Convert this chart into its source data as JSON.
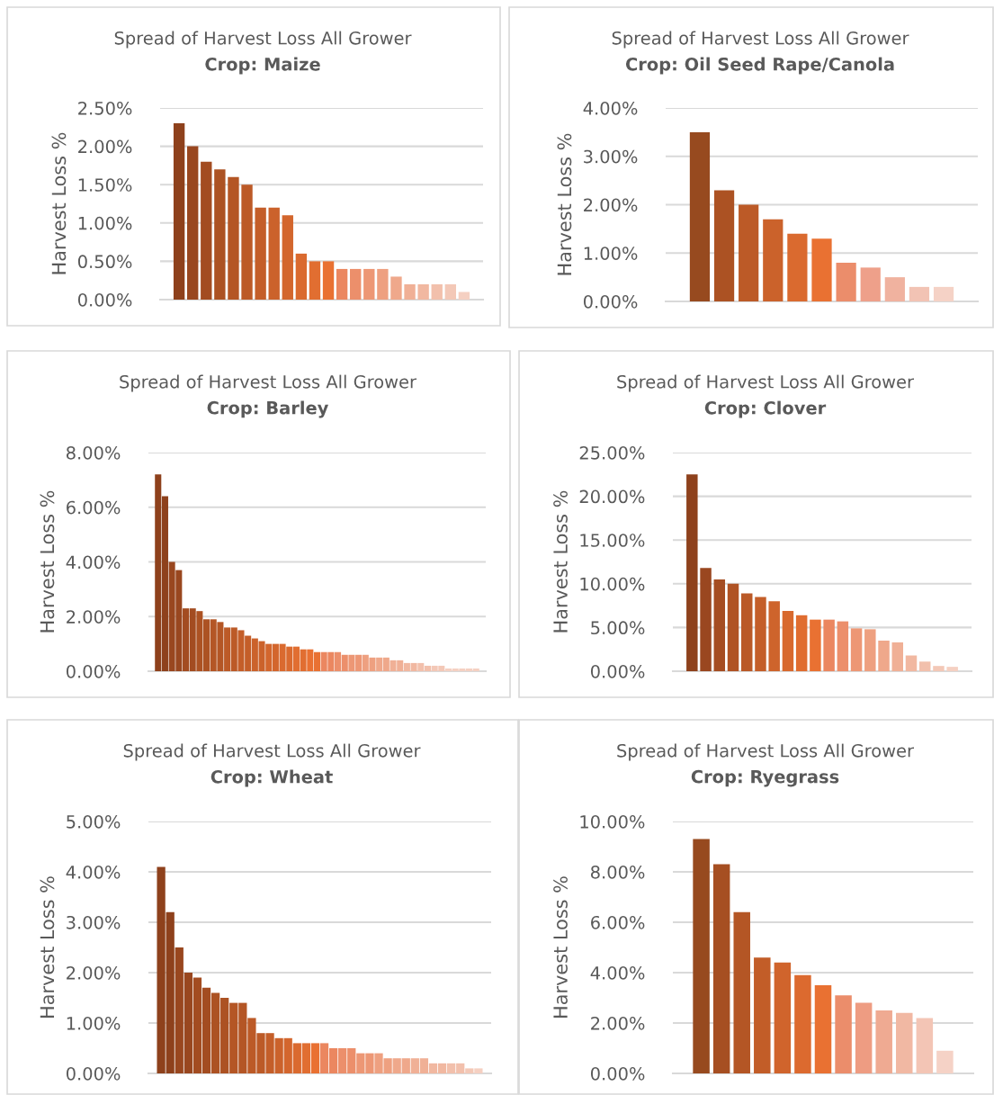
{
  "chart_data": [
    {
      "type": "bar",
      "title": "Spread of Harvest Loss All Grower",
      "subtitle": "Crop: Maize",
      "ylabel": "Harvest Loss %",
      "grid": "y",
      "tick_labels": "y",
      "categories": [
        null,
        null,
        null,
        null,
        null,
        null,
        null,
        null,
        null,
        null,
        null,
        null,
        null,
        null,
        null,
        null,
        null,
        null,
        null,
        null,
        null,
        null
      ],
      "values": [
        2.3,
        2.0,
        1.8,
        1.7,
        1.6,
        1.5,
        1.2,
        1.2,
        1.1,
        0.6,
        0.5,
        0.5,
        0.4,
        0.4,
        0.4,
        0.4,
        0.3,
        0.2,
        0.2,
        0.2,
        0.2,
        0.1
      ],
      "colors": [
        "#8E411C",
        "#99471F",
        "#A34C21",
        "#AC5223",
        "#B45625",
        "#BC5A27",
        "#C45E29",
        "#CB622B",
        "#D3662D",
        "#DA6A2F",
        "#E16E31",
        "#E97132",
        "#EB8760",
        "#EC8F6B",
        "#ED9775",
        "#EEA080",
        "#EFA88B",
        "#F0B096",
        "#F1B8A1",
        "#F2C0AC",
        "#F3C8B7",
        "#F5D0C2"
      ],
      "ylim": [
        0,
        2.5
      ],
      "yticks": [
        {
          "value": 0,
          "label": "0.00%"
        },
        {
          "value": 0.5,
          "label": "0.50%"
        },
        {
          "value": 1.0,
          "label": "1.00%"
        },
        {
          "value": 1.5,
          "label": "1.50%"
        },
        {
          "value": 2.0,
          "label": "2.00%"
        },
        {
          "value": 2.5,
          "label": "2.50%"
        }
      ]
    },
    {
      "type": "bar",
      "title": "Spread of Harvest Loss All Grower",
      "subtitle": "Crop: Oil Seed Rape/Canola",
      "ylabel": "Harvest Loss %",
      "grid": "y",
      "tick_labels": "y",
      "categories": [
        null,
        null,
        null,
        null,
        null,
        null,
        null,
        null,
        null,
        null,
        null
      ],
      "values": [
        3.5,
        2.3,
        2.0,
        1.7,
        1.4,
        1.3,
        0.8,
        0.7,
        0.5,
        0.3,
        0.3
      ],
      "colors": [
        "#974A1F",
        "#AC5223",
        "#BC5A27",
        "#CB622B",
        "#DA6A2F",
        "#E97132",
        "#EB8D6B",
        "#EEA08A",
        "#F0B29F",
        "#F2C3B4",
        "#F5D2C6"
      ],
      "ylim": [
        0,
        4.0
      ],
      "yticks": [
        {
          "value": 0,
          "label": "0.00%"
        },
        {
          "value": 1.0,
          "label": "1.00%"
        },
        {
          "value": 2.0,
          "label": "2.00%"
        },
        {
          "value": 3.0,
          "label": "3.00%"
        },
        {
          "value": 4.0,
          "label": "4.00%"
        }
      ]
    },
    {
      "type": "bar",
      "title": "Spread of Harvest Loss All Grower",
      "subtitle": "Crop: Barley",
      "ylabel": "Harvest Loss %",
      "grid": "y",
      "tick_labels": "y",
      "categories": [
        null,
        null,
        null,
        null,
        null,
        null,
        null,
        null,
        null,
        null,
        null,
        null,
        null,
        null,
        null,
        null,
        null,
        null,
        null,
        null,
        null,
        null,
        null,
        null,
        null,
        null,
        null,
        null,
        null,
        null,
        null,
        null,
        null,
        null,
        null,
        null,
        null,
        null,
        null,
        null,
        null,
        null,
        null,
        null,
        null,
        null,
        null
      ],
      "values": [
        7.2,
        6.4,
        4.0,
        3.7,
        2.3,
        2.3,
        2.2,
        1.9,
        1.9,
        1.8,
        1.6,
        1.6,
        1.5,
        1.3,
        1.2,
        1.1,
        1.0,
        1.0,
        1.0,
        0.9,
        0.9,
        0.8,
        0.8,
        0.7,
        0.7,
        0.7,
        0.7,
        0.6,
        0.6,
        0.6,
        0.6,
        0.5,
        0.5,
        0.5,
        0.4,
        0.4,
        0.3,
        0.3,
        0.3,
        0.2,
        0.2,
        0.2,
        0.1,
        0.1,
        0.1,
        0.1,
        0.1
      ],
      "colors": [
        "#8E411C",
        "#8E411C",
        "#99471F",
        "#99471F",
        "#A34C21",
        "#A34C21",
        "#AC5223",
        "#AC5223",
        "#B45625",
        "#B45625",
        "#BC5A27",
        "#BC5A27",
        "#C45E29",
        "#C45E29",
        "#CB622B",
        "#CB622B",
        "#D3662D",
        "#D3662D",
        "#DA6A2F",
        "#DA6A2F",
        "#E16E31",
        "#E16E31",
        "#E97132",
        "#E97132",
        "#EB8760",
        "#EB8760",
        "#EC8F6B",
        "#EC8F6B",
        "#ED9775",
        "#ED9775",
        "#EEA080",
        "#EEA080",
        "#EFA88B",
        "#EFA88B",
        "#F0B096",
        "#F0B096",
        "#F1B8A1",
        "#F1B8A1",
        "#F2C0AC",
        "#F2C0AC",
        "#F3C8B7",
        "#F3C8B7",
        "#F5D0C2",
        "#F5D0C2",
        "#F5D0C2",
        "#F5D0C2",
        "#F5D0C2"
      ],
      "ylim": [
        0,
        8.0
      ],
      "yticks": [
        {
          "value": 0,
          "label": "0.00%"
        },
        {
          "value": 2.0,
          "label": "2.00%"
        },
        {
          "value": 4.0,
          "label": "4.00%"
        },
        {
          "value": 6.0,
          "label": "6.00%"
        },
        {
          "value": 8.0,
          "label": "8.00%"
        }
      ]
    },
    {
      "type": "bar",
      "title": "Spread of Harvest Loss All Grower",
      "subtitle": "Crop: Clover",
      "ylabel": "Harvest Loss %",
      "grid": "y",
      "tick_labels": "y",
      "categories": [
        null,
        null,
        null,
        null,
        null,
        null,
        null,
        null,
        null,
        null,
        null,
        null,
        null,
        null,
        null,
        null,
        null,
        null,
        null,
        null
      ],
      "values": [
        22.5,
        11.8,
        10.5,
        10.0,
        8.9,
        8.5,
        8.0,
        6.9,
        6.4,
        5.9,
        5.9,
        5.7,
        4.9,
        4.8,
        3.5,
        3.3,
        1.8,
        1.1,
        0.6,
        0.5
      ],
      "colors": [
        "#8E411C",
        "#9A4720",
        "#A54D22",
        "#B05324",
        "#BA5927",
        "#C45E29",
        "#CE642C",
        "#D8692E",
        "#E06D30",
        "#E97132",
        "#EB8760",
        "#EC8F6B",
        "#ED9775",
        "#EEA080",
        "#EFA88B",
        "#F0B096",
        "#F1B8A1",
        "#F2C0AC",
        "#F3C8B7",
        "#F5D0C2"
      ],
      "ylim": [
        0,
        25.0
      ],
      "yticks": [
        {
          "value": 0,
          "label": "0.00%"
        },
        {
          "value": 5.0,
          "label": "5.00%"
        },
        {
          "value": 10.0,
          "label": "10.00%"
        },
        {
          "value": 15.0,
          "label": "15.00%"
        },
        {
          "value": 20.0,
          "label": "20.00%"
        },
        {
          "value": 25.0,
          "label": "25.00%"
        }
      ]
    },
    {
      "type": "bar",
      "title": "Spread of Harvest Loss All Grower",
      "subtitle": "Crop: Wheat",
      "ylabel": "Harvest Loss %",
      "grid": "y",
      "tick_labels": "y",
      "categories": [
        null,
        null,
        null,
        null,
        null,
        null,
        null,
        null,
        null,
        null,
        null,
        null,
        null,
        null,
        null,
        null,
        null,
        null,
        null,
        null,
        null,
        null,
        null,
        null,
        null,
        null,
        null,
        null,
        null,
        null,
        null,
        null,
        null,
        null,
        null,
        null
      ],
      "values": [
        4.1,
        3.2,
        2.5,
        2.0,
        1.9,
        1.7,
        1.6,
        1.5,
        1.4,
        1.4,
        1.1,
        0.8,
        0.8,
        0.7,
        0.7,
        0.6,
        0.6,
        0.6,
        0.6,
        0.5,
        0.5,
        0.5,
        0.4,
        0.4,
        0.4,
        0.3,
        0.3,
        0.3,
        0.3,
        0.3,
        0.2,
        0.2,
        0.2,
        0.2,
        0.1,
        0.1
      ],
      "colors": [
        "#8E411C",
        "#8E411C",
        "#99471F",
        "#99471F",
        "#A34C21",
        "#A34C21",
        "#AC5223",
        "#AC5223",
        "#B45625",
        "#B45625",
        "#BC5A27",
        "#BC5A27",
        "#C45E29",
        "#CB622B",
        "#D3662D",
        "#DA6A2F",
        "#E16E31",
        "#E97132",
        "#EB8760",
        "#EB8760",
        "#EC8F6B",
        "#EC8F6B",
        "#ED9775",
        "#ED9775",
        "#EEA080",
        "#EEA080",
        "#EFA88B",
        "#EFA88B",
        "#F0B096",
        "#F0B096",
        "#F1B8A1",
        "#F1B8A1",
        "#F2C0AC",
        "#F2C0AC",
        "#F3C8B7",
        "#F5D0C2"
      ],
      "ylim": [
        0,
        5.0
      ],
      "yticks": [
        {
          "value": 0,
          "label": "0.00%"
        },
        {
          "value": 1.0,
          "label": "1.00%"
        },
        {
          "value": 2.0,
          "label": "2.00%"
        },
        {
          "value": 3.0,
          "label": "3.00%"
        },
        {
          "value": 4.0,
          "label": "4.00%"
        },
        {
          "value": 5.0,
          "label": "5.00%"
        }
      ]
    },
    {
      "type": "bar",
      "title": "Spread of Harvest Loss All Grower",
      "subtitle": "Crop: Ryegrass",
      "ylabel": "Harvest Loss %",
      "grid": "y",
      "tick_labels": "y",
      "categories": [
        null,
        null,
        null,
        null,
        null,
        null,
        null,
        null,
        null,
        null,
        null,
        null,
        null
      ],
      "values": [
        9.3,
        8.3,
        6.4,
        4.6,
        4.4,
        3.9,
        3.5,
        3.1,
        2.8,
        2.5,
        2.4,
        2.2,
        0.9
      ],
      "colors": [
        "#974A1F",
        "#A64F22",
        "#B45625",
        "#C25D28",
        "#D0642C",
        "#DC6A2F",
        "#E97132",
        "#EB8D6B",
        "#EE9C82",
        "#EFAA92",
        "#F1B8A3",
        "#F3C5B5",
        "#F5D2C6"
      ],
      "ylim": [
        0,
        10.0
      ],
      "yticks": [
        {
          "value": 0,
          "label": "0.00%"
        },
        {
          "value": 2.0,
          "label": "2.00%"
        },
        {
          "value": 4.0,
          "label": "4.00%"
        },
        {
          "value": 6.0,
          "label": "6.00%"
        },
        {
          "value": 8.0,
          "label": "8.00%"
        },
        {
          "value": 10.0,
          "label": "10.00%"
        }
      ]
    }
  ]
}
